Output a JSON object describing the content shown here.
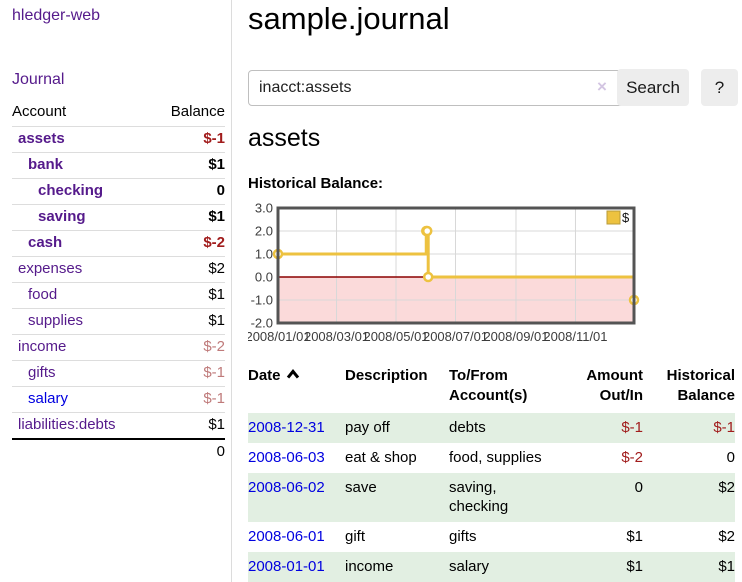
{
  "app": {
    "brand": "hledger-web",
    "nav_journal": "Journal"
  },
  "sidebar": {
    "header": {
      "account": "Account",
      "balance": "Balance"
    },
    "accounts": [
      {
        "name": "assets",
        "indent": 0,
        "balance": "$-1",
        "bold": true,
        "neg": "strong",
        "link": "purple"
      },
      {
        "name": "bank",
        "indent": 1,
        "balance": "$1",
        "bold": true,
        "neg": "none",
        "link": "purple"
      },
      {
        "name": "checking",
        "indent": 2,
        "balance": "0",
        "bold": true,
        "neg": "none",
        "link": "purple"
      },
      {
        "name": "saving",
        "indent": 2,
        "balance": "$1",
        "bold": true,
        "neg": "none",
        "link": "purple"
      },
      {
        "name": "cash",
        "indent": 1,
        "balance": "$-2",
        "bold": true,
        "neg": "strong",
        "link": "purple"
      },
      {
        "name": "expenses",
        "indent": 0,
        "balance": "$2",
        "bold": false,
        "neg": "none",
        "link": "purple"
      },
      {
        "name": "food",
        "indent": 1,
        "balance": "$1",
        "bold": false,
        "neg": "none",
        "link": "purple"
      },
      {
        "name": "supplies",
        "indent": 1,
        "balance": "$1",
        "bold": false,
        "neg": "none",
        "link": "purple"
      },
      {
        "name": "income",
        "indent": 0,
        "balance": "$-2",
        "bold": false,
        "neg": "soft",
        "link": "purple"
      },
      {
        "name": "gifts",
        "indent": 1,
        "balance": "$-1",
        "bold": false,
        "neg": "soft",
        "link": "purple"
      },
      {
        "name": "salary",
        "indent": 1,
        "balance": "$-1",
        "bold": false,
        "neg": "soft",
        "link": "blue"
      },
      {
        "name": "liabilities:debts",
        "indent": 0,
        "balance": "$1",
        "bold": false,
        "neg": "none",
        "link": "purple"
      }
    ],
    "total": "0"
  },
  "header": {
    "title": "sample.journal"
  },
  "search": {
    "value": "inacct:assets",
    "clear_icon": "×",
    "button_label": "Search",
    "help_label": "?"
  },
  "account_page": {
    "title": "assets",
    "chart_label": "Historical Balance:"
  },
  "chart_data": {
    "type": "line",
    "title": "Historical Balance",
    "step": true,
    "series": [
      {
        "name": "$",
        "color": "#edc240",
        "points": [
          {
            "x": "2008-01-01",
            "y": 1
          },
          {
            "x": "2008-06-01",
            "y": 2
          },
          {
            "x": "2008-06-02",
            "y": 2
          },
          {
            "x": "2008-06-03",
            "y": 0
          },
          {
            "x": "2008-12-31",
            "y": -1
          }
        ]
      }
    ],
    "xlim": [
      "2008-01-01",
      "2008-12-31"
    ],
    "ylim": [
      -2,
      3
    ],
    "yticks": [
      3.0,
      2.0,
      1.0,
      0.0,
      -1.0,
      -2.0
    ],
    "ytick_labels": [
      "3.0",
      "2.0",
      "1.0",
      "0.0",
      "-1.0",
      "-2.0"
    ],
    "xticks": [
      "2008-01-01",
      "2008-03-01",
      "2008-05-01",
      "2008-07-01",
      "2008-09-01",
      "2008-11-01"
    ],
    "xtick_labels": [
      "2008/01/01",
      "2008/03/01",
      "2008/05/01",
      "2008/07/01",
      "2008/09/01",
      "2008/11/01"
    ],
    "grid": true,
    "legend": {
      "label": "$",
      "position": "top-right"
    },
    "negative_region_fill": "#fbdada",
    "zero_line_color": "#8b0000",
    "border_color": "#545454",
    "grid_color": "#d8d8d8"
  },
  "register": {
    "columns": {
      "date": "Date",
      "description": "Description",
      "accounts": "To/From\nAccount(s)",
      "amount": "Amount\nOut/In",
      "balance": "Historical\nBalance"
    },
    "sort_icon": "chevron-up",
    "rows": [
      {
        "date": "2008-12-31",
        "description": "pay off",
        "accounts": "debts",
        "amount": "$-1",
        "balance": "$-1",
        "amount_neg": true,
        "balance_neg": true,
        "green": true
      },
      {
        "date": "2008-06-03",
        "description": "eat & shop",
        "accounts": "food, supplies",
        "amount": "$-2",
        "balance": "0",
        "amount_neg": true,
        "balance_neg": false,
        "green": false
      },
      {
        "date": "2008-06-02",
        "description": "save",
        "accounts": "saving,\nchecking",
        "amount": "0",
        "balance": "$2",
        "amount_neg": false,
        "balance_neg": false,
        "green": true
      },
      {
        "date": "2008-06-01",
        "description": "gift",
        "accounts": "gifts",
        "amount": "$1",
        "balance": "$2",
        "amount_neg": false,
        "balance_neg": false,
        "green": false
      },
      {
        "date": "2008-01-01",
        "description": "income",
        "accounts": "salary",
        "amount": "$1",
        "balance": "$1",
        "amount_neg": false,
        "balance_neg": false,
        "green": true
      }
    ]
  }
}
